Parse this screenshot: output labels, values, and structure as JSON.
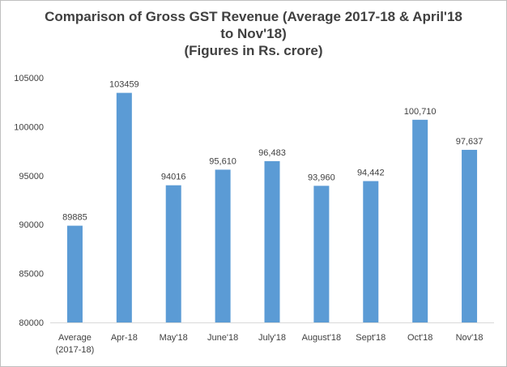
{
  "chart_data": {
    "type": "bar",
    "title": {
      "line1": "Comparison of Gross GST Revenue (Average 2017-18 & April'18",
      "line2": "to Nov'18)",
      "line3": "(Figures in Rs. crore)"
    },
    "xlabel": "",
    "ylabel": "",
    "ylim": [
      80000,
      105000
    ],
    "ytick_step": 5000,
    "yticks": [
      "80000",
      "85000",
      "90000",
      "95000",
      "100000",
      "105000"
    ],
    "grid": false,
    "legend": "none",
    "bar_color": "#5b9bd5",
    "categories": [
      [
        "Average",
        "(2017-18)"
      ],
      [
        "Apr-18"
      ],
      [
        "May'18"
      ],
      [
        "June'18"
      ],
      [
        "July'18"
      ],
      [
        "August'18"
      ],
      [
        "Sept'18"
      ],
      [
        "Oct'18"
      ],
      [
        "Nov'18"
      ]
    ],
    "values": [
      89885,
      103459,
      94016,
      95610,
      96483,
      93960,
      94442,
      100710,
      97637
    ],
    "data_labels": [
      "89885",
      "103459",
      "94016",
      "95,610",
      "96,483",
      "93,960",
      "94,442",
      "100,710",
      "97,637"
    ]
  }
}
